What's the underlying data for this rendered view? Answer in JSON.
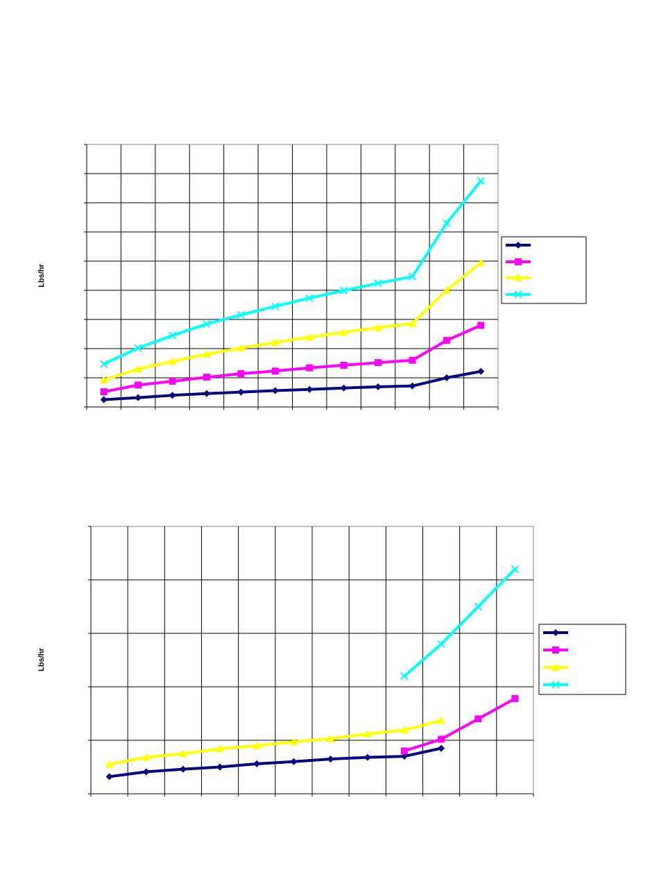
{
  "chart_data": [
    {
      "type": "line",
      "title": "",
      "xlabel": "",
      "ylabel": "Lbs/hr",
      "grid": true,
      "legend_position": "right",
      "ylim": [
        0,
        9
      ],
      "x_categories": 12,
      "series": [
        {
          "color": "#000080",
          "marker": "diamond",
          "values": [
            0.25,
            0.32,
            0.4,
            0.46,
            0.51,
            0.56,
            0.6,
            0.65,
            0.69,
            0.72,
            1.0,
            1.22
          ]
        },
        {
          "color": "#FF00FF",
          "marker": "square",
          "values": [
            0.52,
            0.75,
            0.88,
            1.02,
            1.14,
            1.23,
            1.34,
            1.43,
            1.52,
            1.6,
            2.28,
            2.8
          ]
        },
        {
          "color": "#FFFF00",
          "marker": "triangle",
          "values": [
            0.92,
            1.3,
            1.56,
            1.81,
            2.02,
            2.21,
            2.39,
            2.56,
            2.72,
            2.86,
            4.0,
            4.95
          ]
        },
        {
          "color": "#00FFFF",
          "marker": "x",
          "values": [
            1.47,
            2.02,
            2.45,
            2.84,
            3.16,
            3.45,
            3.73,
            3.99,
            4.24,
            4.47,
            6.3,
            7.75
          ]
        }
      ]
    },
    {
      "type": "line",
      "title": "",
      "xlabel": "",
      "ylabel": "Lbs/hr",
      "grid": true,
      "legend_position": "right",
      "ylim": [
        0,
        5
      ],
      "x_categories": 12,
      "series": [
        {
          "color": "#000080",
          "marker": "diamond",
          "values": [
            0.32,
            0.41,
            0.46,
            0.5,
            0.56,
            0.6,
            0.65,
            0.68,
            0.7,
            0.85,
            null,
            null
          ]
        },
        {
          "color": "#FF00FF",
          "marker": "square",
          "values": [
            null,
            null,
            null,
            null,
            null,
            null,
            null,
            null,
            0.8,
            1.02,
            1.4,
            1.78
          ]
        },
        {
          "color": "#FFFF00",
          "marker": "triangle",
          "values": [
            0.55,
            0.68,
            0.75,
            0.84,
            0.9,
            0.97,
            1.03,
            1.12,
            1.19,
            1.37,
            null,
            null
          ]
        },
        {
          "color": "#00FFFF",
          "marker": "x",
          "values": [
            null,
            null,
            null,
            null,
            null,
            null,
            null,
            null,
            2.2,
            2.8,
            3.5,
            4.2
          ]
        }
      ]
    }
  ]
}
